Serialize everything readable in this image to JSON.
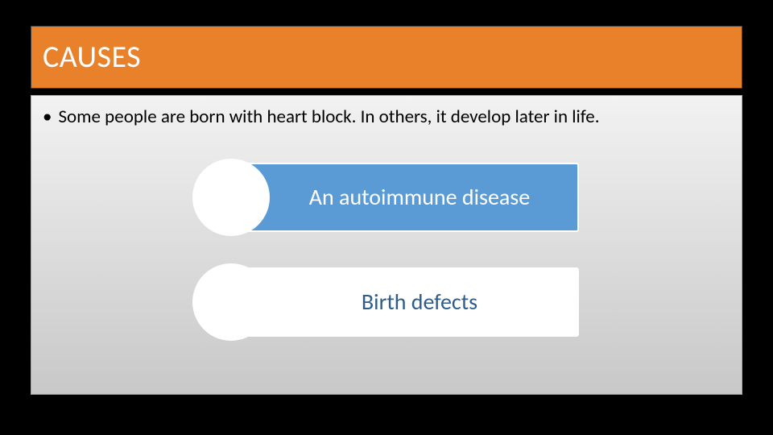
{
  "title": {
    "text": "CAUSES",
    "background_color": "#e9812b",
    "text_color": "#ffffff",
    "fontsize": 38
  },
  "body": {
    "bullet_text": "Some people are born with heart block. In others, it develop later in life.",
    "text_color": "#1a1a1a",
    "fontsize": 23,
    "background_gradient_top": "#f2f2f2",
    "background_gradient_bottom": "#c8c8c8"
  },
  "smartart": {
    "type": "infographic",
    "items": [
      {
        "label": "An autoimmune disease",
        "circle_fill": "#ffffff",
        "bar_fill": "#5b9bd5",
        "text_color": "#ffffff"
      },
      {
        "label": "Birth defects",
        "circle_fill": "#ffffff",
        "bar_fill": "#ffffff",
        "text_color": "#2e5d8c"
      }
    ],
    "border_color": "#ffffff",
    "label_fontsize": 28
  },
  "slide_background": "#000000"
}
